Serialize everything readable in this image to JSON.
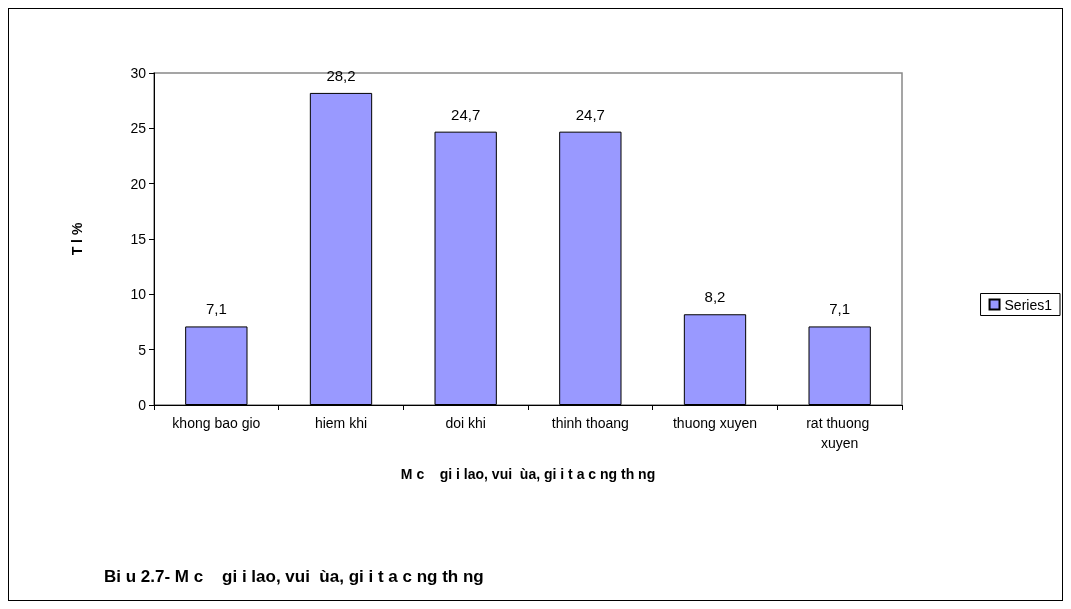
{
  "chart_data": {
    "type": "bar",
    "title": "Bi u 2.7- M c    gi i lao, vui  ùa, gi i t a c ng th ng",
    "xlabel": "M c    gi i lao, vui  ùa, gi i t a c ng th ng",
    "ylabel": "T l %",
    "categories": [
      "khong bao gio",
      "hiem khi",
      "doi khi",
      "thinh thoang",
      "thuong xuyen",
      "rat thuong xuyen"
    ],
    "series": [
      {
        "name": "Series1",
        "color": "#9999ff",
        "values": [
          7.1,
          28.2,
          24.7,
          24.7,
          8.2,
          7.1
        ],
        "value_labels": [
          "7,1",
          "28,2",
          "24,7",
          "24,7",
          "8,2",
          "7,1"
        ]
      }
    ],
    "ylim": [
      0,
      30
    ],
    "yticks": [
      0,
      5,
      10,
      15,
      20,
      25,
      30
    ],
    "grid": false,
    "legend": "right"
  }
}
